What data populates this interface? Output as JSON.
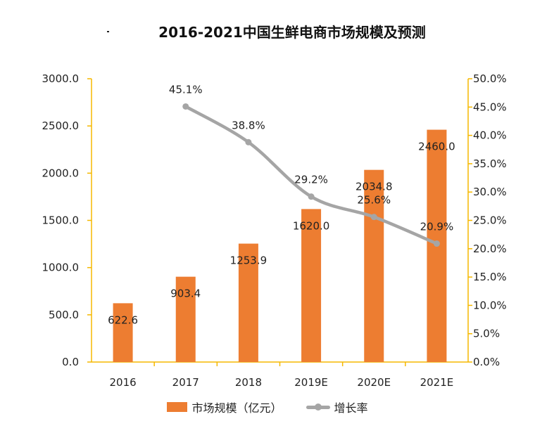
{
  "chart_data": {
    "type": "bar+line",
    "title": "2016-2021中国生鲜电商市场规模及预测",
    "categories": [
      "2016",
      "2017",
      "2018",
      "2019E",
      "2020E",
      "2021E"
    ],
    "series": [
      {
        "name": "市场规模（亿元）",
        "type": "bar",
        "axis": "left",
        "values": [
          622.6,
          903.4,
          1253.9,
          1620.0,
          2034.8,
          2460.0
        ],
        "labels": [
          "622.6",
          "903.4",
          "1253.9",
          "1620.0",
          "2034.8",
          "2460.0"
        ],
        "color": "#ED7D31"
      },
      {
        "name": "增长率",
        "type": "line",
        "axis": "right",
        "values": [
          null,
          45.1,
          38.8,
          29.2,
          25.6,
          20.9
        ],
        "labels": [
          "",
          "45.1%",
          "38.8%",
          "29.2%",
          "25.6%",
          "20.9%"
        ],
        "color": "#A5A5A5",
        "smooth": true
      }
    ],
    "left_axis": {
      "ylim": [
        0,
        3000
      ],
      "ticks": [
        "0.0",
        "500.0",
        "1000.0",
        "1500.0",
        "2000.0",
        "2500.0",
        "3000.0"
      ]
    },
    "right_axis": {
      "ylim": [
        0,
        50
      ],
      "ticks": [
        "0.0%",
        "5.0%",
        "10.0%",
        "15.0%",
        "20.0%",
        "25.0%",
        "30.0%",
        "35.0%",
        "40.0%",
        "45.0%",
        "50.0%"
      ]
    },
    "axis_color": "#F5B800",
    "grid": false,
    "legend": "bottom"
  }
}
